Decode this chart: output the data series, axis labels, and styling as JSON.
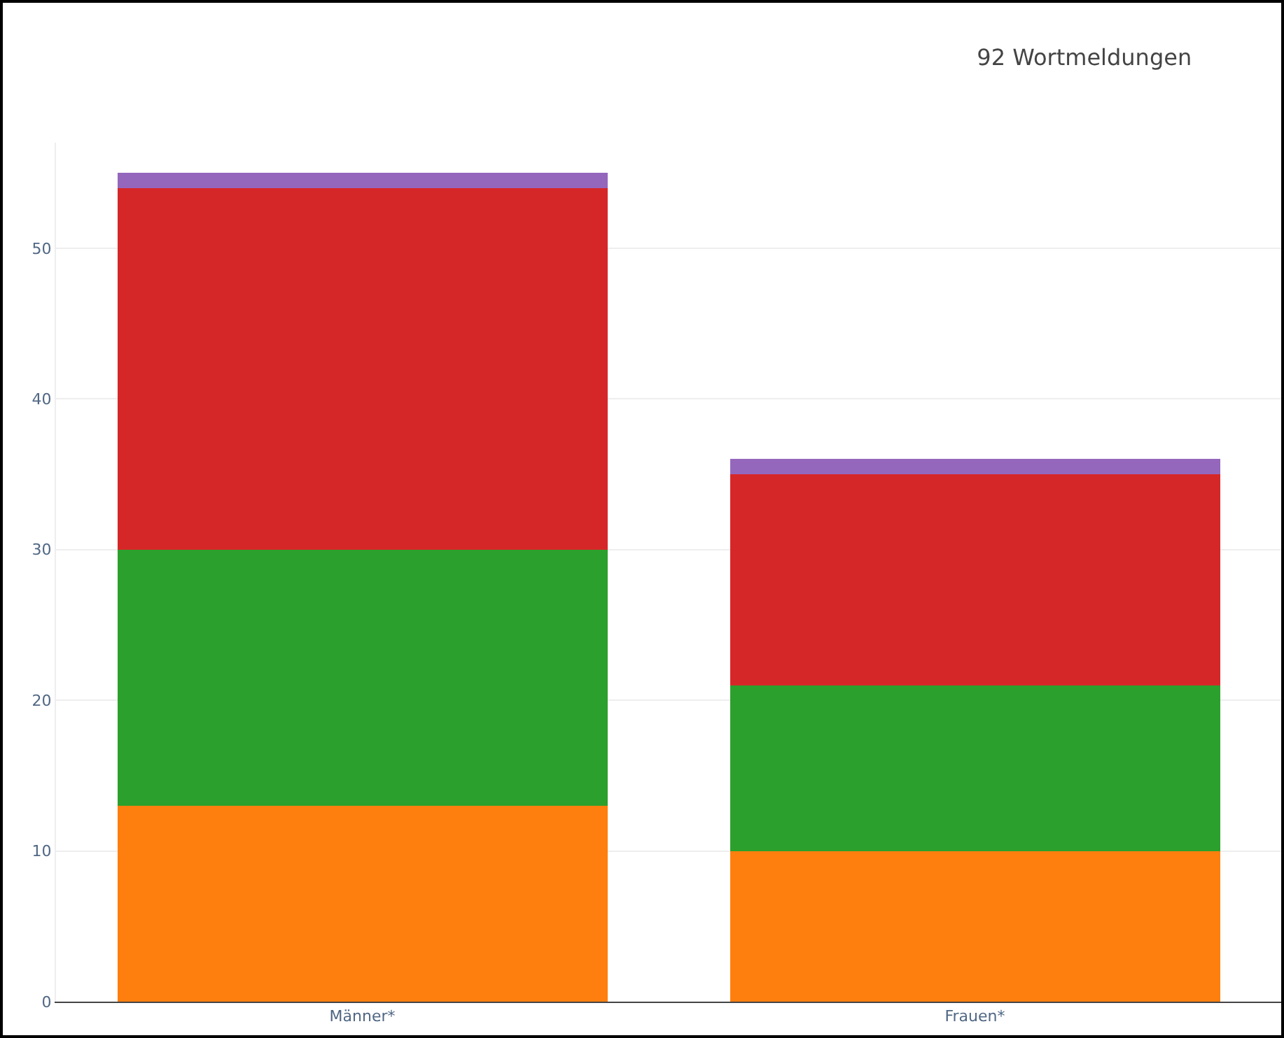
{
  "chart_data": {
    "type": "bar",
    "title": "92 Wortmeldungen",
    "categories": [
      "Männer*",
      "Frauen*"
    ],
    "stacked": true,
    "series": [
      {
        "color": "#ff7f0e",
        "values": [
          13,
          10
        ]
      },
      {
        "color": "#2ca02c",
        "values": [
          17,
          11
        ]
      },
      {
        "color": "#d62728",
        "values": [
          24,
          14
        ]
      },
      {
        "color": "#9467bd",
        "values": [
          1,
          1
        ]
      }
    ],
    "ylim": [
      0,
      57
    ],
    "yticks": [
      0,
      10,
      20,
      30,
      40,
      50
    ],
    "grid": "y"
  }
}
